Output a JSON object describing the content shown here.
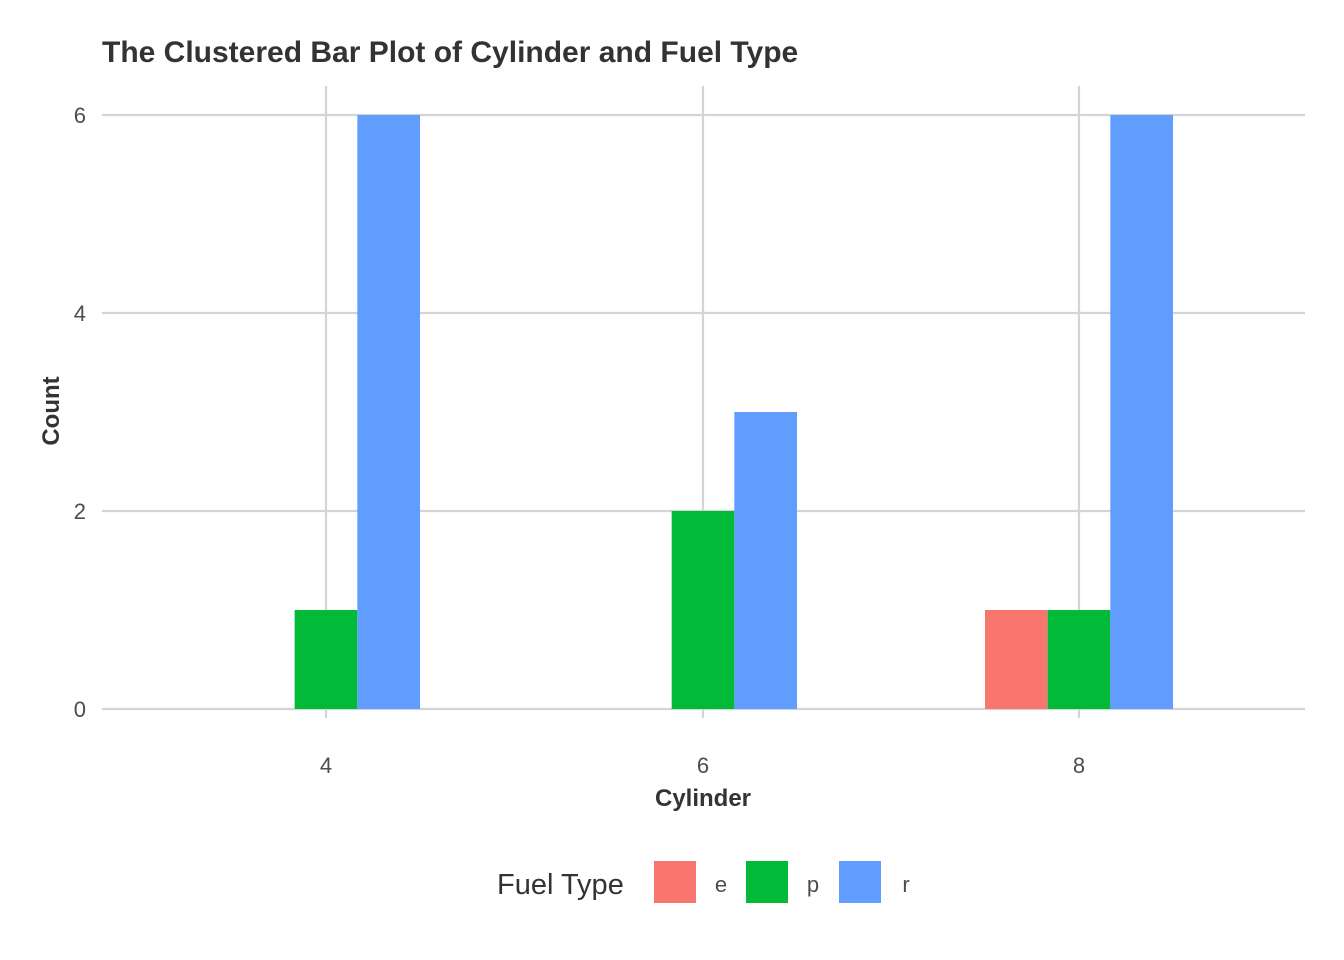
{
  "chart_data": {
    "type": "bar",
    "title": "The Clustered Bar Plot of Cylinder and Fuel Type",
    "xlabel": "Cylinder",
    "ylabel": "Count",
    "categories": [
      "4",
      "6",
      "8"
    ],
    "y_ticks": [
      "0",
      "2",
      "4",
      "6"
    ],
    "ylim": [
      0,
      6
    ],
    "series": [
      {
        "name": "e",
        "color": "#F8766D",
        "values": [
          0,
          0,
          1
        ]
      },
      {
        "name": "p",
        "color": "#00BA38",
        "values": [
          1,
          2,
          1
        ]
      },
      {
        "name": "r",
        "color": "#619CFF",
        "values": [
          6,
          3,
          6
        ]
      }
    ],
    "legend": {
      "title": "Fuel Type",
      "position": "bottom"
    },
    "grid": true
  }
}
